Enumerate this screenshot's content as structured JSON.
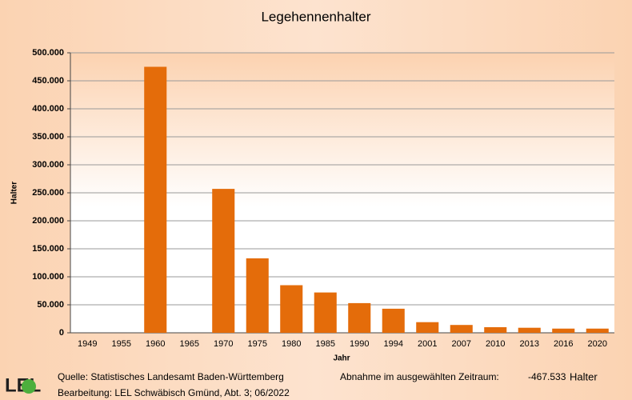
{
  "chart_data": {
    "type": "bar",
    "title": "Legehennenhalter",
    "y_label": "Halter",
    "x_label": "Jahr",
    "categories": [
      "1949",
      "1955",
      "1960",
      "1965",
      "1970",
      "1975",
      "1980",
      "1985",
      "1990",
      "1994",
      "2001",
      "2007",
      "2010",
      "2013",
      "2016",
      "2020"
    ],
    "values": [
      null,
      null,
      475000,
      null,
      257000,
      133000,
      85000,
      72000,
      53000,
      43000,
      19000,
      14000,
      10000,
      9000,
      7500,
      7500
    ],
    "color": "#e46c0a",
    "ylim": [
      0,
      500000
    ],
    "yticks": [
      0,
      {
        "value": 50000,
        "label": "50.000"
      },
      {
        "value": 100000,
        "label": "100.000"
      },
      {
        "value": 150000,
        "label": "150.000"
      },
      {
        "value": 200000,
        "label": "200.000"
      },
      {
        "value": 250000,
        "label": "250.000"
      },
      {
        "value": 300000,
        "label": "300.000"
      },
      {
        "value": 350000,
        "label": "350.000"
      },
      {
        "value": 400000,
        "label": "400.000"
      },
      {
        "value": 450000,
        "label": "450.000"
      },
      {
        "value": 500000,
        "label": "500.000"
      }
    ],
    "grid": true
  },
  "footer": {
    "logo": "LEL",
    "source": "Quelle: Statistisches Landesamt Baden-Württemberg",
    "editor": "Bearbeitung: LEL Schwäbisch Gmünd, Abt. 3; 06/2022",
    "decline_label": "Abnahme im ausgewählten Zeitraum:",
    "decline_value": "-467.533",
    "decline_unit": "Halter"
  }
}
